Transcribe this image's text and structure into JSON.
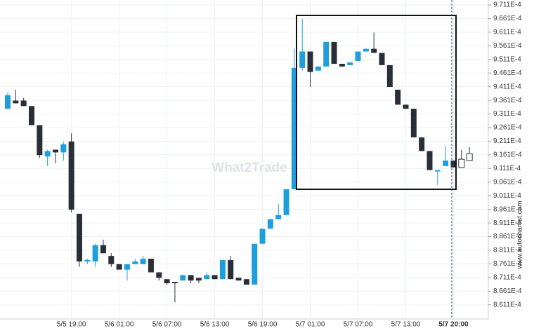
{
  "chart_data": {
    "type": "candlestick",
    "watermark": "What2Trade",
    "source": "www.autochartist.com",
    "categories": [
      null,
      null,
      null,
      null,
      null,
      null,
      null,
      null,
      "5/5 19:00",
      null,
      null,
      null,
      null,
      null,
      "5/6 01:00",
      null,
      null,
      null,
      null,
      null,
      "5/6 07:00",
      null,
      null,
      null,
      null,
      null,
      "5/6 13:00",
      null,
      null,
      null,
      null,
      null,
      "5/6 19:00",
      null,
      null,
      null,
      null,
      null,
      "5/7 01:00",
      null,
      null,
      null,
      null,
      null,
      "5/7 07:00",
      null,
      null,
      null,
      null,
      null,
      "5/7 13:00",
      null,
      null,
      null,
      null,
      null,
      "5/7 20:00",
      null,
      null
    ],
    "open": [
      0.000933,
      0.000936,
      0.000936,
      0.000934,
      0.000927,
      0.0009155,
      0.000918,
      0.000917,
      0.000921,
      0.0008945,
      0.000877,
      0.000877,
      0.000883,
      0.000879,
      0.000876,
      0.000874,
      0.000876,
      0.000876,
      0.000878,
      0.000873,
      0.0008705,
      0.0008695,
      0.00087,
      0.000872,
      0.000871,
      0.0008705,
      0.000872,
      0.0008705,
      0.0008775,
      0.000871,
      0.0008705,
      0.0008685,
      0.0008835,
      0.000889,
      0.0008925,
      0.000894,
      0.0009035,
      0.000948,
      0.000954,
      0.000947,
      0.0009485,
      0.0009575,
      0.0009495,
      0.000949,
      0.0009505,
      0.000954,
      0.000955,
      0.0009535,
      0.000949,
      0.00094,
      0.0009345,
      0.000933,
      0.0009225,
      0.0009175,
      0.00091,
      0.000912,
      0.000914,
      0.0009115,
      0.000914
    ],
    "high": [
      0.000939,
      0.00094,
      0.000937,
      0.000934,
      0.000927,
      0.000918,
      0.000918,
      0.000921,
      0.000924,
      0.0008945,
      0.000878,
      0.0008835,
      0.000885,
      0.00088,
      0.000876,
      0.000876,
      0.000878,
      0.000879,
      0.000878,
      0.000873,
      0.0008705,
      0.0008695,
      0.000872,
      0.000872,
      0.000871,
      0.000873,
      0.000872,
      0.0008775,
      0.000879,
      0.000871,
      0.0008705,
      0.0008835,
      0.000889,
      0.0008925,
      0.000898,
      0.0009035,
      0.000955,
      0.000966,
      0.000954,
      0.0009485,
      0.0009575,
      0.0009575,
      0.0009495,
      0.00095,
      0.000954,
      0.000955,
      0.000961,
      0.0009535,
      0.000949,
      0.00094,
      0.0009345,
      0.000933,
      0.0009225,
      0.0009175,
      0.0009105,
      0.0009195,
      0.000914,
      0.000918,
      0.000919
    ],
    "low": [
      0.000933,
      0.000935,
      0.000934,
      0.000927,
      0.000915,
      0.000912,
      0.000913,
      0.000914,
      0.000895,
      0.000875,
      0.000876,
      0.000875,
      0.00088,
      0.000875,
      0.000874,
      0.00087,
      0.000876,
      0.000876,
      0.000873,
      0.00087,
      0.0008685,
      0.000862,
      0.00087,
      0.000869,
      0.000869,
      0.0008705,
      0.0008705,
      0.0008705,
      0.0008705,
      0.00087,
      0.0008685,
      0.0008685,
      0.0008835,
      0.000889,
      0.0008925,
      0.000894,
      0.0009035,
      0.000947,
      0.000941,
      0.000947,
      0.0009485,
      0.0009495,
      0.0009485,
      0.000949,
      0.0009505,
      0.000954,
      0.0009535,
      0.000949,
      0.000941,
      0.0009345,
      0.000933,
      0.0009225,
      0.0009175,
      0.0009105,
      0.000905,
      0.000912,
      0.0009115,
      0.0009115,
      0.000914
    ],
    "close": [
      0.000938,
      0.000935,
      0.000934,
      0.000927,
      0.000916,
      0.0009175,
      0.000917,
      0.00092,
      0.000896,
      0.000877,
      0.0008775,
      0.000883,
      0.00088,
      0.000876,
      0.000874,
      0.000876,
      0.000877,
      0.000878,
      0.000873,
      0.000871,
      0.000869,
      0.000869,
      0.000872,
      0.00087,
      0.00087,
      0.000872,
      0.0008705,
      0.0008775,
      0.0008705,
      0.00087,
      0.0008685,
      0.0008835,
      0.000889,
      0.0008925,
      0.000894,
      0.0009035,
      0.000948,
      0.000954,
      0.0009465,
      0.0009485,
      0.0009575,
      0.0009495,
      0.0009485,
      0.00095,
      0.000954,
      0.000955,
      0.0009535,
      0.000949,
      0.000941,
      0.0009345,
      0.000933,
      0.0009225,
      0.0009175,
      0.0009105,
      0.0009105,
      0.000914,
      0.0009115,
      0.0009145,
      0.0009165
    ],
    "up_color": "#1e9fdc",
    "down_color": "#2a2e39",
    "pending_color": "#ffffff",
    "pending": [
      false,
      false,
      false,
      false,
      false,
      false,
      false,
      false,
      false,
      false,
      false,
      false,
      false,
      false,
      false,
      false,
      false,
      false,
      false,
      false,
      false,
      false,
      false,
      false,
      false,
      false,
      false,
      false,
      false,
      false,
      false,
      false,
      false,
      false,
      false,
      false,
      false,
      false,
      false,
      false,
      false,
      false,
      false,
      false,
      false,
      false,
      false,
      false,
      false,
      false,
      false,
      false,
      false,
      false,
      false,
      false,
      false,
      true,
      true
    ],
    "ylim": [
      0.0008559,
      0.0009729
    ],
    "yticks": [
      {
        "value": 0.0009711,
        "label": "9.711E-4"
      },
      {
        "value": 0.0009661,
        "label": "9.661E-4"
      },
      {
        "value": 0.0009611,
        "label": "9.611E-4"
      },
      {
        "value": 0.0009561,
        "label": "9.561E-4"
      },
      {
        "value": 0.0009511,
        "label": "9.511E-4"
      },
      {
        "value": 0.0009461,
        "label": "9.461E-4"
      },
      {
        "value": 0.0009411,
        "label": "9.411E-4"
      },
      {
        "value": 0.0009361,
        "label": "9.361E-4"
      },
      {
        "value": 0.0009311,
        "label": "9.311E-4"
      },
      {
        "value": 0.0009261,
        "label": "9.261E-4"
      },
      {
        "value": 0.0009211,
        "label": "9.211E-4"
      },
      {
        "value": 0.0009161,
        "label": "9.161E-4"
      },
      {
        "value": 0.0009111,
        "label": "9.111E-4"
      },
      {
        "value": 0.0009061,
        "label": "9.061E-4"
      },
      {
        "value": 0.0009011,
        "label": "9.011E-4"
      },
      {
        "value": 0.0008961,
        "label": "8.961E-4"
      },
      {
        "value": 0.0008911,
        "label": "8.911E-4"
      },
      {
        "value": 0.0008861,
        "label": "8.861E-4"
      },
      {
        "value": 0.0008811,
        "label": "8.811E-4"
      },
      {
        "value": 0.0008761,
        "label": "8.761E-4"
      },
      {
        "value": 0.0008711,
        "label": "8.711E-4"
      },
      {
        "value": 0.0008661,
        "label": "8.661E-4"
      },
      {
        "value": 0.0008611,
        "label": "8.611E-4"
      }
    ],
    "grid": true
  }
}
